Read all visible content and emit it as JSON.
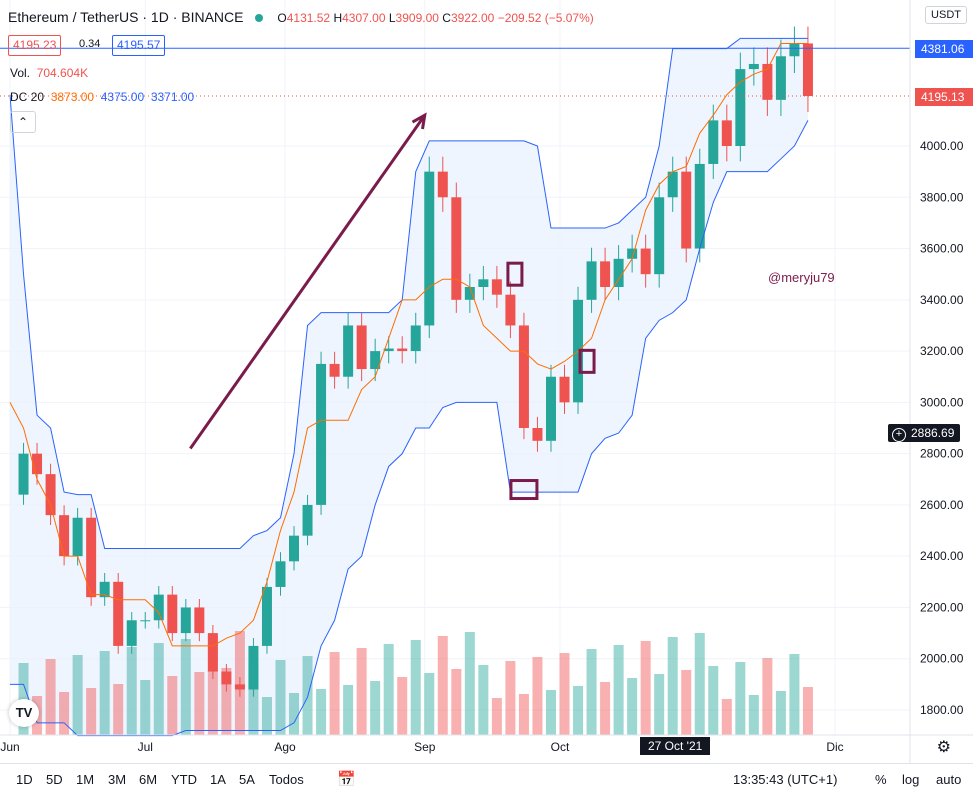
{
  "header": {
    "symbol": "Ethereum / TetherUS · 1D · BINANCE",
    "o_label": "O",
    "o": "4131.52",
    "h_label": "H",
    "h": "4307.00",
    "l_label": "L",
    "l": "3909.00",
    "c_label": "C",
    "c": "3922.00",
    "change": "−209.52 (−5.07%)"
  },
  "price_boxes": {
    "bid": "4195.23",
    "spread": "0.34",
    "ask": "4195.57"
  },
  "volume": {
    "label": "Vol.",
    "value": "704.604K"
  },
  "indicator": {
    "label": "DC 20",
    "basis": "3873.00",
    "upper": "4375.00",
    "lower": "3371.00"
  },
  "axis": {
    "currency": "USDT",
    "upper_tag": "4381.06",
    "last_tag": "4195.13",
    "cursor_tag": "2886.69"
  },
  "watermark": "@meryju79",
  "date_tag": "27 Oct '21",
  "bottom": {
    "ranges": [
      "1D",
      "5D",
      "1M",
      "3M",
      "6M",
      "YTD",
      "1A",
      "5A",
      "Todos"
    ],
    "time": "13:35:43 (UTC+1)",
    "pct": "%",
    "log": "log",
    "auto": "auto"
  },
  "colors": {
    "up": "#26a69a",
    "down": "#ef5350",
    "dc_upper_lower": "#2962ff",
    "dc_basis": "#ff6d00",
    "fill": "#e8f1fd",
    "annotation": "#7b1b4b"
  },
  "chart_data": {
    "type": "candlestick",
    "y_ticks": [
      1800,
      2000,
      2200,
      2400,
      2600,
      2800,
      3000,
      3200,
      3400,
      3600,
      3800,
      4000
    ],
    "ylim": [
      1720,
      4420
    ],
    "x_ticks": [
      {
        "label": "Jun",
        "day": 1
      },
      {
        "label": "Jul",
        "day": 31
      },
      {
        "label": "Ago",
        "day": 62
      },
      {
        "label": "Sep",
        "day": 93
      },
      {
        "label": "Oct",
        "day": 123
      },
      {
        "label": "Dic",
        "day": 184
      }
    ],
    "series_close": [
      [
        1,
        2640
      ],
      [
        4,
        2800
      ],
      [
        7,
        2720
      ],
      [
        10,
        2560
      ],
      [
        13,
        2400
      ],
      [
        16,
        2550
      ],
      [
        19,
        2240
      ],
      [
        22,
        2300
      ],
      [
        25,
        2050
      ],
      [
        28,
        2150
      ],
      [
        31,
        2150
      ],
      [
        34,
        2250
      ],
      [
        37,
        2100
      ],
      [
        40,
        2200
      ],
      [
        43,
        2100
      ],
      [
        46,
        1950
      ],
      [
        49,
        1900
      ],
      [
        52,
        1880
      ],
      [
        55,
        2050
      ],
      [
        58,
        2280
      ],
      [
        61,
        2380
      ],
      [
        64,
        2480
      ],
      [
        67,
        2600
      ],
      [
        70,
        3150
      ],
      [
        73,
        3100
      ],
      [
        76,
        3300
      ],
      [
        79,
        3130
      ],
      [
        82,
        3200
      ],
      [
        85,
        3210
      ],
      [
        88,
        3200
      ],
      [
        91,
        3300
      ],
      [
        94,
        3900
      ],
      [
        97,
        3800
      ],
      [
        100,
        3400
      ],
      [
        103,
        3450
      ],
      [
        106,
        3480
      ],
      [
        109,
        3420
      ],
      [
        112,
        3300
      ],
      [
        115,
        2900
      ],
      [
        118,
        2850
      ],
      [
        121,
        3100
      ],
      [
        124,
        3000
      ],
      [
        127,
        3400
      ],
      [
        130,
        3550
      ],
      [
        133,
        3450
      ],
      [
        136,
        3560
      ],
      [
        139,
        3600
      ],
      [
        142,
        3500
      ],
      [
        145,
        3800
      ],
      [
        148,
        3900
      ],
      [
        151,
        3600
      ],
      [
        154,
        3930
      ],
      [
        157,
        4100
      ],
      [
        160,
        4000
      ],
      [
        163,
        4300
      ],
      [
        166,
        4320
      ],
      [
        169,
        4180
      ],
      [
        172,
        4350
      ],
      [
        175,
        4400
      ],
      [
        178,
        4195
      ]
    ],
    "donchian_upper": [
      [
        1,
        4200
      ],
      [
        4,
        3500
      ],
      [
        7,
        2950
      ],
      [
        10,
        2900
      ],
      [
        13,
        2650
      ],
      [
        16,
        2640
      ],
      [
        19,
        2640
      ],
      [
        22,
        2430
      ],
      [
        25,
        2430
      ],
      [
        28,
        2430
      ],
      [
        31,
        2430
      ],
      [
        34,
        2430
      ],
      [
        37,
        2430
      ],
      [
        40,
        2430
      ],
      [
        43,
        2430
      ],
      [
        46,
        2430
      ],
      [
        49,
        2430
      ],
      [
        52,
        2430
      ],
      [
        55,
        2480
      ],
      [
        58,
        2500
      ],
      [
        61,
        2550
      ],
      [
        64,
        2800
      ],
      [
        67,
        3300
      ],
      [
        70,
        3350
      ],
      [
        73,
        3350
      ],
      [
        76,
        3350
      ],
      [
        79,
        3350
      ],
      [
        82,
        3350
      ],
      [
        85,
        3350
      ],
      [
        88,
        3400
      ],
      [
        91,
        3900
      ],
      [
        94,
        4020
      ],
      [
        97,
        4020
      ],
      [
        100,
        4020
      ],
      [
        103,
        4020
      ],
      [
        106,
        4020
      ],
      [
        109,
        4020
      ],
      [
        112,
        4020
      ],
      [
        115,
        4020
      ],
      [
        118,
        4000
      ],
      [
        121,
        3680
      ],
      [
        124,
        3680
      ],
      [
        127,
        3680
      ],
      [
        130,
        3680
      ],
      [
        133,
        3680
      ],
      [
        136,
        3700
      ],
      [
        139,
        3750
      ],
      [
        142,
        3800
      ],
      [
        145,
        4000
      ],
      [
        148,
        4380
      ],
      [
        151,
        4380
      ],
      [
        154,
        4380
      ],
      [
        157,
        4380
      ],
      [
        160,
        4380
      ],
      [
        163,
        4420
      ],
      [
        166,
        4420
      ],
      [
        169,
        4420
      ],
      [
        172,
        4420
      ],
      [
        175,
        4420
      ],
      [
        178,
        4420
      ]
    ],
    "donchian_basis": [
      [
        1,
        3000
      ],
      [
        4,
        2900
      ],
      [
        7,
        2700
      ],
      [
        10,
        2600
      ],
      [
        13,
        2400
      ],
      [
        16,
        2400
      ],
      [
        19,
        2250
      ],
      [
        22,
        2250
      ],
      [
        25,
        2230
      ],
      [
        28,
        2230
      ],
      [
        31,
        2230
      ],
      [
        34,
        2180
      ],
      [
        37,
        2050
      ],
      [
        40,
        2050
      ],
      [
        43,
        2050
      ],
      [
        46,
        2050
      ],
      [
        49,
        2080
      ],
      [
        52,
        2100
      ],
      [
        55,
        2150
      ],
      [
        58,
        2300
      ],
      [
        61,
        2500
      ],
      [
        64,
        2650
      ],
      [
        67,
        2900
      ],
      [
        70,
        2930
      ],
      [
        73,
        2930
      ],
      [
        76,
        2930
      ],
      [
        79,
        3050
      ],
      [
        82,
        3100
      ],
      [
        85,
        3250
      ],
      [
        88,
        3400
      ],
      [
        91,
        3400
      ],
      [
        94,
        3450
      ],
      [
        97,
        3480
      ],
      [
        100,
        3480
      ],
      [
        103,
        3450
      ],
      [
        106,
        3300
      ],
      [
        109,
        3250
      ],
      [
        112,
        3200
      ],
      [
        115,
        3200
      ],
      [
        118,
        3150
      ],
      [
        121,
        3130
      ],
      [
        124,
        3160
      ],
      [
        127,
        3200
      ],
      [
        130,
        3250
      ],
      [
        133,
        3400
      ],
      [
        136,
        3480
      ],
      [
        139,
        3560
      ],
      [
        142,
        3750
      ],
      [
        145,
        3850
      ],
      [
        148,
        3900
      ],
      [
        151,
        3920
      ],
      [
        154,
        4050
      ],
      [
        157,
        4120
      ],
      [
        160,
        4200
      ],
      [
        163,
        4250
      ],
      [
        166,
        4280
      ],
      [
        169,
        4300
      ],
      [
        172,
        4400
      ],
      [
        175,
        4400
      ],
      [
        178,
        4400
      ]
    ],
    "donchian_lower": [
      [
        1,
        1900
      ],
      [
        4,
        1900
      ],
      [
        7,
        1750
      ],
      [
        10,
        1750
      ],
      [
        13,
        1750
      ],
      [
        16,
        1700
      ],
      [
        19,
        1700
      ],
      [
        22,
        1700
      ],
      [
        25,
        1700
      ],
      [
        28,
        1700
      ],
      [
        31,
        1700
      ],
      [
        34,
        1700
      ],
      [
        37,
        1700
      ],
      [
        40,
        1720
      ],
      [
        43,
        1720
      ],
      [
        46,
        1720
      ],
      [
        49,
        1720
      ],
      [
        52,
        1720
      ],
      [
        55,
        1720
      ],
      [
        58,
        1720
      ],
      [
        61,
        1720
      ],
      [
        64,
        1750
      ],
      [
        67,
        1850
      ],
      [
        70,
        2050
      ],
      [
        73,
        2150
      ],
      [
        76,
        2350
      ],
      [
        79,
        2400
      ],
      [
        82,
        2600
      ],
      [
        85,
        2750
      ],
      [
        88,
        2800
      ],
      [
        91,
        2900
      ],
      [
        94,
        2900
      ],
      [
        97,
        2980
      ],
      [
        100,
        3000
      ],
      [
        103,
        3000
      ],
      [
        106,
        3000
      ],
      [
        109,
        3000
      ],
      [
        112,
        2650
      ],
      [
        115,
        2650
      ],
      [
        118,
        2650
      ],
      [
        121,
        2650
      ],
      [
        124,
        2650
      ],
      [
        127,
        2650
      ],
      [
        130,
        2800
      ],
      [
        133,
        2860
      ],
      [
        136,
        2880
      ],
      [
        139,
        2950
      ],
      [
        142,
        3250
      ],
      [
        145,
        3320
      ],
      [
        148,
        3350
      ],
      [
        151,
        3400
      ],
      [
        154,
        3600
      ],
      [
        157,
        3780
      ],
      [
        160,
        3900
      ],
      [
        163,
        3900
      ],
      [
        166,
        3900
      ],
      [
        169,
        3900
      ],
      [
        172,
        3950
      ],
      [
        175,
        4000
      ],
      [
        178,
        4100
      ]
    ],
    "last_price": 4195.13,
    "upper_line": 4381.06,
    "annotation_arrow": {
      "from": [
        41,
        2820
      ],
      "to": [
        93,
        4120
      ]
    },
    "highlight_boxes": [
      [
        115,
        2660
      ],
      [
        113,
        3500
      ],
      [
        129,
        3160
      ]
    ]
  }
}
